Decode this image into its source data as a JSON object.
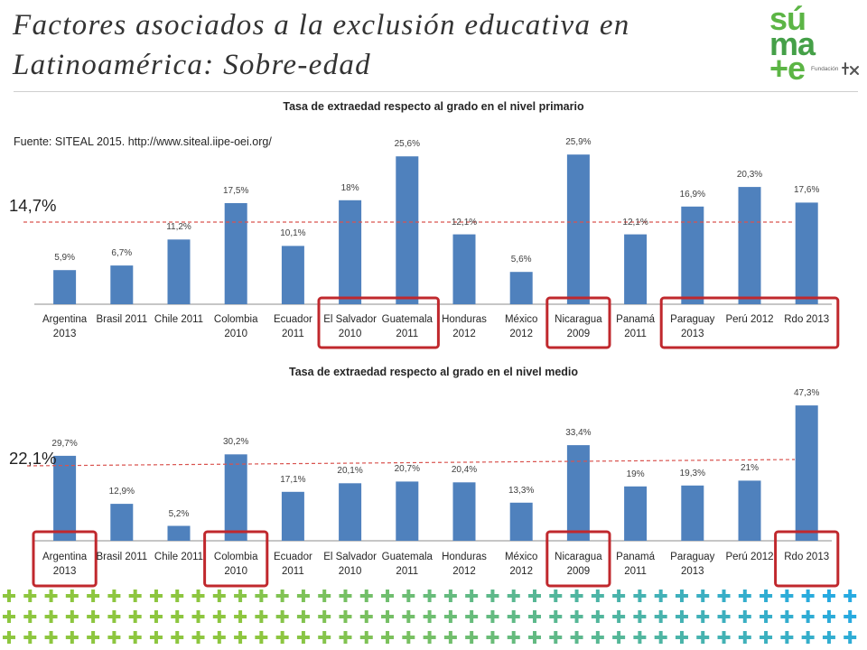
{
  "title": {
    "line1": "Factores asociados a la exclusión educativa en",
    "line2": "Latinoamérica: Sobre-edad"
  },
  "logo": {
    "part1": "sú",
    "part2": "ma",
    "part3": "+e",
    "foundation": "Fundación"
  },
  "source": "Fuente: SITEAL 2015. http://www.siteal.iipe-oei.org/",
  "colors": {
    "bar": "#4f81bd",
    "highlight": "#c0282d",
    "reference_line": "#d9534f",
    "plus_green": "#8dc63f",
    "plus_blue": "#27aae1",
    "logo_green": "#5cb545",
    "logo_green_dark": "#45a048",
    "logo_mark": "#555555"
  },
  "chart_data": [
    {
      "type": "bar",
      "title": "Tasa de extraedad respecto al grado en el nivel primario",
      "categories": [
        "Argentina\n2013",
        "Brasil 2011",
        "Chile 2011",
        "Colombia\n2010",
        "Ecuador\n2011",
        "El Salvador\n2010",
        "Guatemala\n2011",
        "Honduras\n2012",
        "México\n2012",
        "Nicaragua\n2009",
        "Panamá\n2011",
        "Paraguay\n2013",
        "Perú 2012",
        "Rdo 2013"
      ],
      "values": [
        5.9,
        6.7,
        11.2,
        17.5,
        10.1,
        18,
        25.6,
        12.1,
        5.6,
        25.9,
        12.1,
        16.9,
        20.3,
        17.6
      ],
      "value_labels": [
        "5,9%",
        "6,7%",
        "11,2%",
        "17,5%",
        "10,1%",
        "18%",
        "25,6%",
        "12,1%",
        "5,6%",
        "25,9%",
        "12,1%",
        "16,9%",
        "20,3%",
        "17,6%"
      ],
      "reference": {
        "value": 14.7,
        "label": "14,7%"
      },
      "highlight_groups": [
        [
          5,
          6
        ],
        [
          9,
          9
        ],
        [
          11,
          13
        ]
      ],
      "xlabel": "",
      "ylabel": "",
      "ylim": [
        0,
        30
      ]
    },
    {
      "type": "bar",
      "title": "Tasa de extraedad respecto al grado en el nivel medio",
      "categories": [
        "Argentina\n2013",
        "Brasil 2011",
        "Chile 2011",
        "Colombia\n2010",
        "Ecuador\n2011",
        "El Salvador\n2010",
        "Guatemala\n2011",
        "Honduras\n2012",
        "México\n2012",
        "Nicaragua\n2009",
        "Panamá\n2011",
        "Paraguay\n2013",
        "Perú 2012",
        "Rdo 2013"
      ],
      "values": [
        29.7,
        12.9,
        5.2,
        30.2,
        17.1,
        20.1,
        20.7,
        20.4,
        13.3,
        33.4,
        19,
        19.3,
        21,
        47.3
      ],
      "value_labels": [
        "29,7%",
        "12,9%",
        "5,2%",
        "30,2%",
        "17,1%",
        "20,1%",
        "20,7%",
        "20,4%",
        "13,3%",
        "33,4%",
        "19%",
        "19,3%",
        "21%",
        "47,3%"
      ],
      "reference": {
        "value": 22.1,
        "label": "22,1%"
      },
      "highlight_groups": [
        [
          0,
          0
        ],
        [
          3,
          3
        ],
        [
          9,
          9
        ],
        [
          13,
          13
        ]
      ],
      "xlabel": "",
      "ylabel": "",
      "ylim": [
        0,
        50
      ]
    }
  ]
}
